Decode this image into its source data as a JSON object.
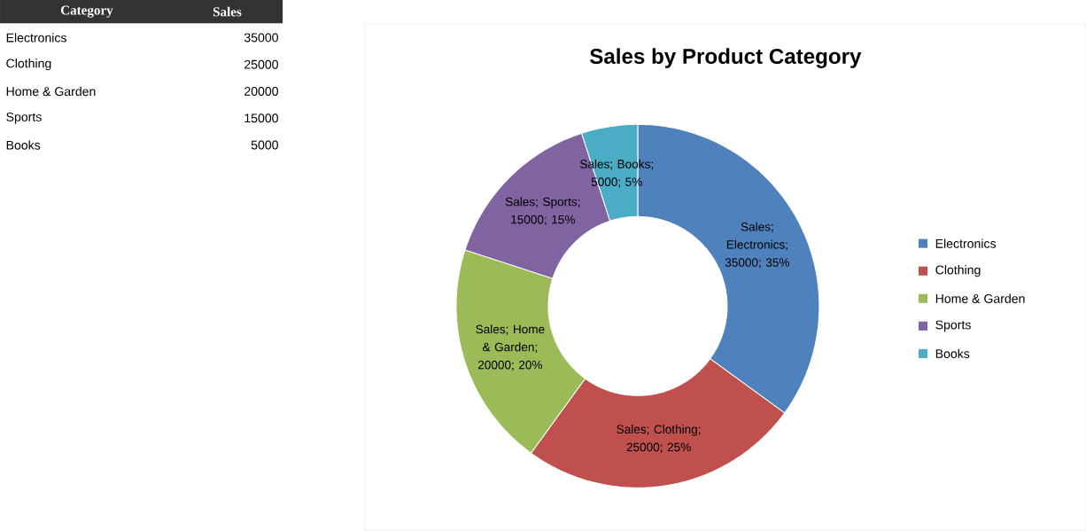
{
  "chart_data": {
    "type": "donut",
    "title": "Sales by Product Category",
    "categories": [
      "Electronics",
      "Clothing",
      "Home & Garden",
      "Sports",
      "Books"
    ],
    "values": [
      35000,
      25000,
      20000,
      15000,
      5000
    ],
    "colors": [
      "#4f81bd",
      "#c0504d",
      "#9bbb59",
      "#8064a2",
      "#4bacc6"
    ],
    "value_labels": [
      "Sales; Electronics; 35000; 35%",
      "Sales; Clothing; 25000; 25%",
      "Sales; Home & Garden; 20000; 20%",
      "Sales; Sports; 15000; 15%",
      "Sales; Books; 5000; 5%"
    ],
    "legend": "right",
    "annotations": [
      "Category",
      "Sales",
      "35000",
      "25000",
      "20000",
      "15000",
      "5000"
    ]
  }
}
